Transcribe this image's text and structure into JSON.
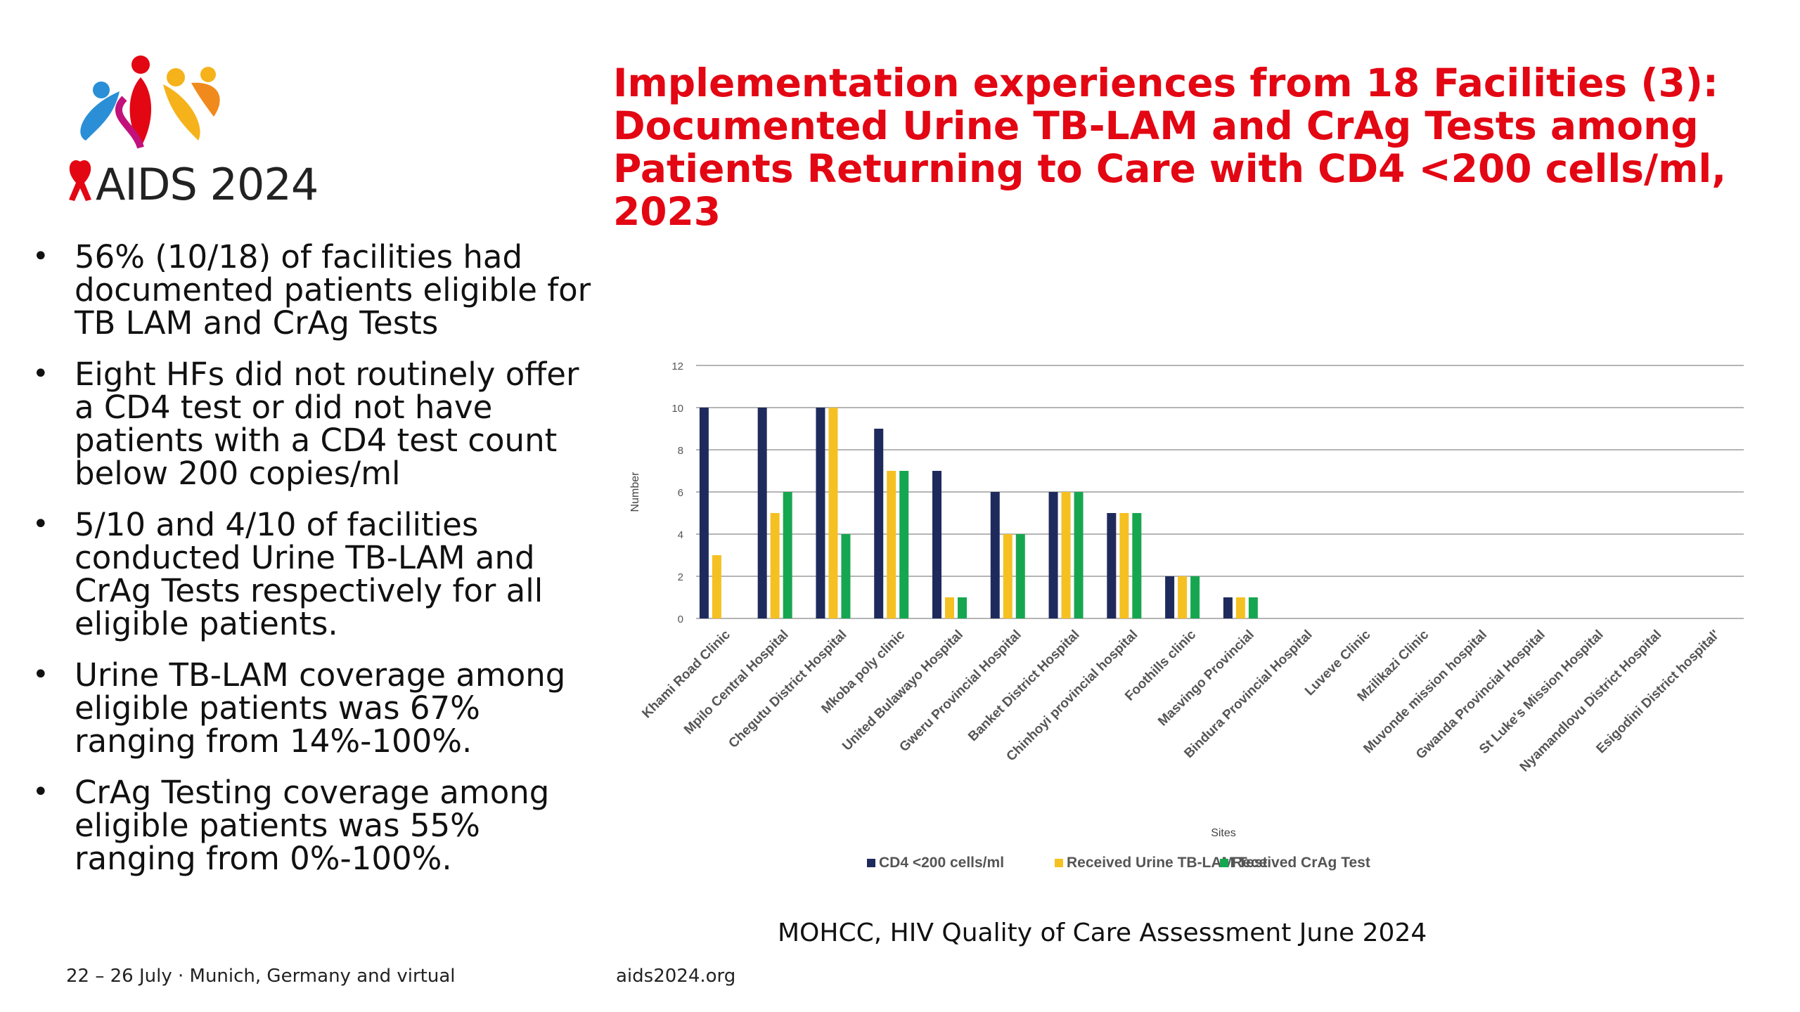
{
  "conference": {
    "logo_text": "AIDS 2024",
    "footer_dates": "22 – 26 July · Munich, Germany and virtual",
    "footer_url": "aids2024.org",
    "brand_red": "#e30613"
  },
  "slide": {
    "title": "Implementation experiences from 18 Facilities (3): Documented Urine TB-LAM and CrAg Tests among Patients Returning to Care with CD4 <200 cells/ml, 2023",
    "bullets": [
      "56% (10/18) of facilities had documented patients eligible for TB LAM  and CrAg Tests",
      "Eight HFs did not routinely offer a CD4 test or did not have patients with a CD4 test count below 200 copies/ml",
      "5/10 and 4/10 of facilities conducted Urine TB-LAM and CrAg Tests respectively for all eligible patients.",
      "Urine TB-LAM coverage among eligible patients was 67% ranging from 14%-100%.",
      "CrAg Testing coverage among eligible patients was 55% ranging from 0%-100%."
    ],
    "source": "MOHCC, HIV Quality of Care Assessment June 2024"
  },
  "chart_data": {
    "type": "bar",
    "title": "",
    "xlabel": "Sites",
    "ylabel": "Number",
    "ylim": [
      0,
      12
    ],
    "yticks": [
      0,
      2,
      4,
      6,
      8,
      10,
      12
    ],
    "grid": true,
    "legend_position": "bottom",
    "categories": [
      "Khami Road Clinic",
      "Mpilo Central Hospital",
      "Chegutu District Hospital",
      "Mkoba poly clinic",
      "United Bulawayo Hospital",
      "Gweru Provincial Hospital",
      "Banket District Hospital",
      "Chinhoyi provincial hospital",
      "Foothills clinic",
      "Masvingo Provincial",
      "Bindura Provincial Hospital",
      "Luveve Clinic",
      "Mzilikazi Clinic",
      "Muvonde mission hospital",
      "Gwanda Provincial Hospital",
      "St Luke's Mission Hospital",
      "Nyamandlovu District Hospital",
      "Esigodini District hospital'"
    ],
    "series": [
      {
        "name": "CD4 <200 cells/ml",
        "color": "#1f2a5c",
        "values": [
          10,
          10,
          10,
          9,
          7,
          6,
          6,
          5,
          2,
          1,
          0,
          0,
          0,
          0,
          0,
          0,
          0,
          0
        ]
      },
      {
        "name": "Received Urine TB-LAM Test",
        "color": "#f5c021",
        "values": [
          3,
          5,
          10,
          7,
          1,
          4,
          6,
          5,
          2,
          1,
          0,
          0,
          0,
          0,
          0,
          0,
          0,
          0
        ]
      },
      {
        "name": "Received CrAg Test",
        "color": "#17a650",
        "values": [
          0,
          6,
          4,
          7,
          1,
          4,
          6,
          5,
          2,
          1,
          0,
          0,
          0,
          0,
          0,
          0,
          0,
          0
        ]
      }
    ]
  }
}
